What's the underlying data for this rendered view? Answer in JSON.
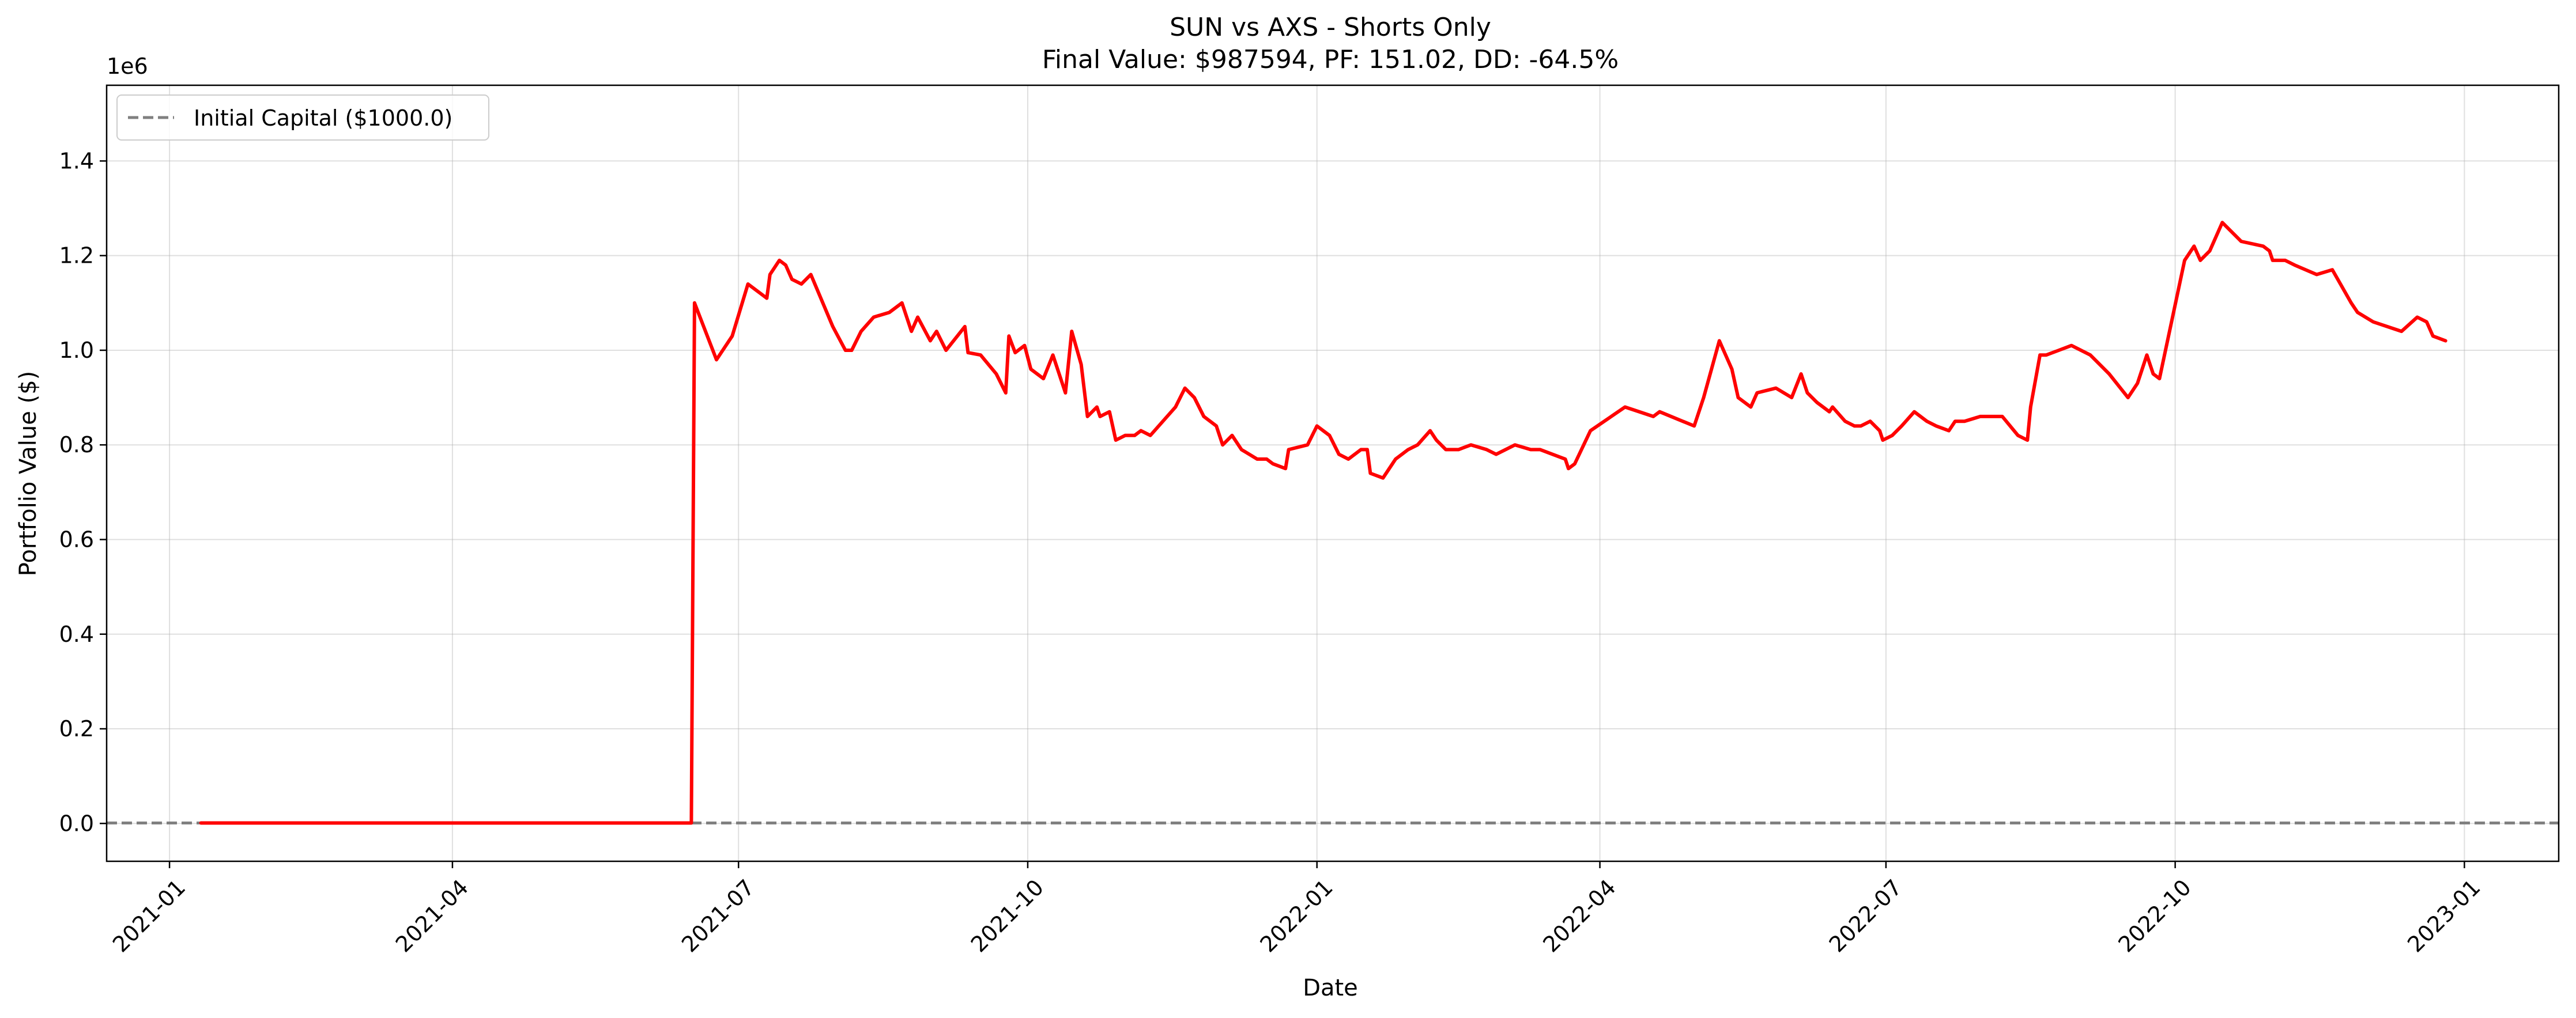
{
  "chart_data": {
    "type": "line",
    "title": "SUN vs AXS - Shorts Only",
    "subtitle": "Final Value: $987594, PF: 151.02, DD: -64.5%",
    "xlabel": "Date",
    "ylabel": "Portfolio Value ($)",
    "y_offset_text": "1e6",
    "ylim": [
      -0.08,
      1.56
    ],
    "xlim": [
      "2020-12-12",
      "2023-01-31"
    ],
    "grid": true,
    "legend_position": "top-left",
    "x_ticks": [
      "2021-01",
      "2021-04",
      "2021-07",
      "2021-10",
      "2022-01",
      "2022-04",
      "2022-07",
      "2022-10",
      "2023-01"
    ],
    "y_ticks": [
      "0.0",
      "0.2",
      "0.4",
      "0.6",
      "0.8",
      "1.0",
      "1.2",
      "1.4"
    ],
    "reference_line": {
      "label": "Initial Capital ($1000.0)",
      "y": 0.001,
      "color": "#808080",
      "style": "dashed"
    },
    "series": [
      {
        "color": "#ff0000",
        "unit": "millions USD",
        "points": [
          [
            "2021-01-11",
            0.001
          ],
          [
            "2021-02-15",
            0.001
          ],
          [
            "2021-04-01",
            0.001
          ],
          [
            "2021-05-15",
            0.001
          ],
          [
            "2021-06-16",
            0.001
          ],
          [
            "2021-06-17",
            1.1
          ],
          [
            "2021-06-24",
            0.98
          ],
          [
            "2021-06-29",
            1.03
          ],
          [
            "2021-07-04",
            1.14
          ],
          [
            "2021-07-08",
            1.12
          ],
          [
            "2021-07-10",
            1.11
          ],
          [
            "2021-07-11",
            1.16
          ],
          [
            "2021-07-14",
            1.19
          ],
          [
            "2021-07-16",
            1.18
          ],
          [
            "2021-07-18",
            1.15
          ],
          [
            "2021-07-21",
            1.14
          ],
          [
            "2021-07-24",
            1.16
          ],
          [
            "2021-07-31",
            1.05
          ],
          [
            "2021-08-04",
            1.0
          ],
          [
            "2021-08-06",
            1.0
          ],
          [
            "2021-08-09",
            1.04
          ],
          [
            "2021-08-13",
            1.07
          ],
          [
            "2021-08-18",
            1.08
          ],
          [
            "2021-08-22",
            1.1
          ],
          [
            "2021-08-25",
            1.04
          ],
          [
            "2021-08-27",
            1.07
          ],
          [
            "2021-08-31",
            1.02
          ],
          [
            "2021-09-02",
            1.04
          ],
          [
            "2021-09-05",
            1.0
          ],
          [
            "2021-09-11",
            1.05
          ],
          [
            "2021-09-12",
            0.995
          ],
          [
            "2021-09-16",
            0.99
          ],
          [
            "2021-09-21",
            0.95
          ],
          [
            "2021-09-24",
            0.91
          ],
          [
            "2021-09-25",
            1.03
          ],
          [
            "2021-09-27",
            0.995
          ],
          [
            "2021-09-30",
            1.01
          ],
          [
            "2021-10-02",
            0.96
          ],
          [
            "2021-10-06",
            0.94
          ],
          [
            "2021-10-09",
            0.99
          ],
          [
            "2021-10-13",
            0.91
          ],
          [
            "2021-10-15",
            1.04
          ],
          [
            "2021-10-18",
            0.97
          ],
          [
            "2021-10-20",
            0.86
          ],
          [
            "2021-10-23",
            0.88
          ],
          [
            "2021-10-24",
            0.86
          ],
          [
            "2021-10-27",
            0.87
          ],
          [
            "2021-10-29",
            0.81
          ],
          [
            "2021-11-01",
            0.82
          ],
          [
            "2021-11-04",
            0.82
          ],
          [
            "2021-11-06",
            0.83
          ],
          [
            "2021-11-09",
            0.82
          ],
          [
            "2021-11-17",
            0.88
          ],
          [
            "2021-11-20",
            0.92
          ],
          [
            "2021-11-23",
            0.9
          ],
          [
            "2021-11-26",
            0.86
          ],
          [
            "2021-11-30",
            0.84
          ],
          [
            "2021-12-02",
            0.8
          ],
          [
            "2021-12-05",
            0.82
          ],
          [
            "2021-12-08",
            0.79
          ],
          [
            "2021-12-13",
            0.77
          ],
          [
            "2021-12-16",
            0.77
          ],
          [
            "2021-12-18",
            0.76
          ],
          [
            "2021-12-22",
            0.75
          ],
          [
            "2021-12-23",
            0.79
          ],
          [
            "2021-12-29",
            0.8
          ],
          [
            "2022-01-01",
            0.84
          ],
          [
            "2022-01-05",
            0.82
          ],
          [
            "2022-01-08",
            0.78
          ],
          [
            "2022-01-11",
            0.77
          ],
          [
            "2022-01-15",
            0.79
          ],
          [
            "2022-01-17",
            0.79
          ],
          [
            "2022-01-18",
            0.74
          ],
          [
            "2022-01-22",
            0.73
          ],
          [
            "2022-01-26",
            0.77
          ],
          [
            "2022-01-30",
            0.79
          ],
          [
            "2022-02-02",
            0.8
          ],
          [
            "2022-02-06",
            0.83
          ],
          [
            "2022-02-08",
            0.81
          ],
          [
            "2022-02-11",
            0.79
          ],
          [
            "2022-02-15",
            0.79
          ],
          [
            "2022-02-19",
            0.8
          ],
          [
            "2022-02-24",
            0.79
          ],
          [
            "2022-02-27",
            0.78
          ],
          [
            "2022-03-05",
            0.8
          ],
          [
            "2022-03-10",
            0.79
          ],
          [
            "2022-03-13",
            0.79
          ],
          [
            "2022-03-21",
            0.77
          ],
          [
            "2022-03-22",
            0.75
          ],
          [
            "2022-03-24",
            0.76
          ],
          [
            "2022-03-29",
            0.83
          ],
          [
            "2022-04-09",
            0.88
          ],
          [
            "2022-04-18",
            0.86
          ],
          [
            "2022-04-20",
            0.87
          ],
          [
            "2022-05-01",
            0.84
          ],
          [
            "2022-05-04",
            0.9
          ],
          [
            "2022-05-09",
            1.02
          ],
          [
            "2022-05-11",
            0.99
          ],
          [
            "2022-05-13",
            0.96
          ],
          [
            "2022-05-15",
            0.9
          ],
          [
            "2022-05-19",
            0.88
          ],
          [
            "2022-05-21",
            0.91
          ],
          [
            "2022-05-27",
            0.92
          ],
          [
            "2022-06-01",
            0.9
          ],
          [
            "2022-06-04",
            0.95
          ],
          [
            "2022-06-06",
            0.91
          ],
          [
            "2022-06-09",
            0.89
          ],
          [
            "2022-06-13",
            0.87
          ],
          [
            "2022-06-14",
            0.88
          ],
          [
            "2022-06-18",
            0.85
          ],
          [
            "2022-06-21",
            0.84
          ],
          [
            "2022-06-23",
            0.84
          ],
          [
            "2022-06-26",
            0.85
          ],
          [
            "2022-06-29",
            0.83
          ],
          [
            "2022-06-30",
            0.81
          ],
          [
            "2022-07-03",
            0.82
          ],
          [
            "2022-07-06",
            0.84
          ],
          [
            "2022-07-10",
            0.87
          ],
          [
            "2022-07-14",
            0.85
          ],
          [
            "2022-07-17",
            0.84
          ],
          [
            "2022-07-21",
            0.83
          ],
          [
            "2022-07-23",
            0.85
          ],
          [
            "2022-07-26",
            0.85
          ],
          [
            "2022-07-31",
            0.86
          ],
          [
            "2022-08-03",
            0.86
          ],
          [
            "2022-08-07",
            0.86
          ],
          [
            "2022-08-12",
            0.82
          ],
          [
            "2022-08-15",
            0.81
          ],
          [
            "2022-08-16",
            0.88
          ],
          [
            "2022-08-19",
            0.99
          ],
          [
            "2022-08-21",
            0.99
          ],
          [
            "2022-08-25",
            1.0
          ],
          [
            "2022-08-29",
            1.01
          ],
          [
            "2022-09-04",
            0.99
          ],
          [
            "2022-09-10",
            0.95
          ],
          [
            "2022-09-16",
            0.9
          ],
          [
            "2022-09-19",
            0.93
          ],
          [
            "2022-09-22",
            0.99
          ],
          [
            "2022-09-24",
            0.95
          ],
          [
            "2022-09-26",
            0.94
          ],
          [
            "2022-10-04",
            1.19
          ],
          [
            "2022-10-07",
            1.22
          ],
          [
            "2022-10-09",
            1.19
          ],
          [
            "2022-10-12",
            1.21
          ],
          [
            "2022-10-16",
            1.27
          ],
          [
            "2022-10-22",
            1.23
          ],
          [
            "2022-10-29",
            1.22
          ],
          [
            "2022-10-31",
            1.21
          ],
          [
            "2022-11-01",
            1.19
          ],
          [
            "2022-11-05",
            1.19
          ],
          [
            "2022-11-08",
            1.18
          ],
          [
            "2022-11-15",
            1.16
          ],
          [
            "2022-11-20",
            1.17
          ],
          [
            "2022-11-26",
            1.1
          ],
          [
            "2022-11-28",
            1.08
          ],
          [
            "2022-12-03",
            1.06
          ],
          [
            "2022-12-12",
            1.04
          ],
          [
            "2022-12-17",
            1.07
          ],
          [
            "2022-12-20",
            1.06
          ],
          [
            "2022-12-22",
            1.03
          ],
          [
            "2022-12-26",
            1.02
          ]
        ]
      }
    ]
  }
}
